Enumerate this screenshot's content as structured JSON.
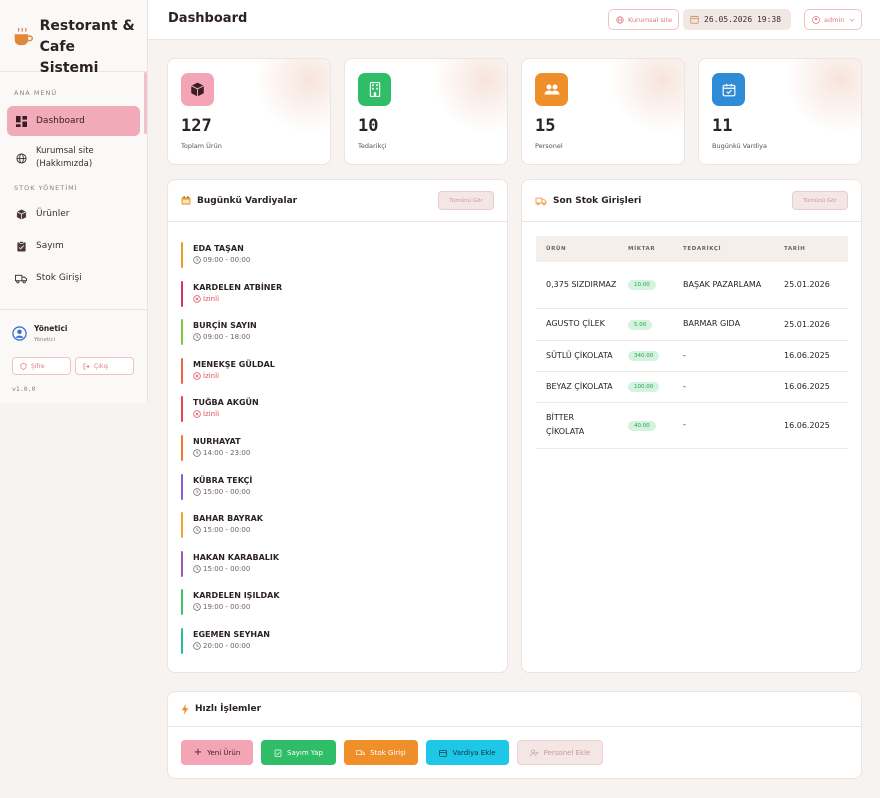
{
  "brand": {
    "title_line1": "Restorant &",
    "title_line2": "Cafe Sistemi"
  },
  "sidebar": {
    "section_main": "ANA MENÜ",
    "section_stock": "STOK YÖNETİMİ",
    "items": [
      {
        "label": "Dashboard",
        "icon": "dashboard-icon"
      },
      {
        "label": "Kurumsal site",
        "label2": "(Hakkımızda)",
        "icon": "globe-icon"
      },
      {
        "label": "Ürünler",
        "icon": "box-icon"
      },
      {
        "label": "Sayım",
        "icon": "clipboard-icon"
      },
      {
        "label": "Stok Girişi",
        "icon": "truck-icon"
      }
    ],
    "user": {
      "name": "Yönetici",
      "role": "Yönetici"
    },
    "password_btn": "Şifre",
    "logout_btn": "Çıkış",
    "version": "v1.0.0"
  },
  "topbar": {
    "title": "Dashboard",
    "kurumsal": "Kurumsal site",
    "datetime": "26.05.2026 19:38",
    "user": "admin"
  },
  "stats": [
    {
      "value": "127",
      "label": "Toplam Ürün",
      "color": "#f3a5b5",
      "icon": "box-icon"
    },
    {
      "value": "10",
      "label": "Tedarikçi",
      "color": "#2fbe67",
      "icon": "building-icon"
    },
    {
      "value": "15",
      "label": "Personel",
      "color": "#ef8f2a",
      "icon": "users-icon"
    },
    {
      "value": "11",
      "label": "Bugünkü Vardiya",
      "color": "#2f8bd6",
      "icon": "calendar-check-icon"
    }
  ],
  "shifts_panel": {
    "title": "Bugünkü Vardiyalar",
    "all_btn": "Tümünü Gör",
    "items": [
      {
        "name": "EDA TAŞAN",
        "time": "09:00 - 00:00",
        "off": false,
        "color": "#ef9a2a"
      },
      {
        "name": "KARDELEN ATBİNER",
        "time": "İzinli",
        "off": true,
        "color": "#d6336c"
      },
      {
        "name": "BURÇİN SAYIN",
        "time": "09:00 - 18:00",
        "off": false,
        "color": "#7ac943"
      },
      {
        "name": "MENEKŞE GÜLDAL",
        "time": "İzinli",
        "off": true,
        "color": "#f0643c"
      },
      {
        "name": "TUĞBA AKGÜN",
        "time": "İzinli",
        "off": true,
        "color": "#e8434f"
      },
      {
        "name": "NURHAYAT",
        "time": "14:00 - 23:00",
        "off": false,
        "color": "#f07a2a"
      },
      {
        "name": "KÜBRA TEKÇİ",
        "time": "15:00 - 00:00",
        "off": false,
        "color": "#8e5bd6"
      },
      {
        "name": "BAHAR BAYRAK",
        "time": "15:00 - 00:00",
        "off": false,
        "color": "#f0a52a"
      },
      {
        "name": "HAKAN KARABALIK",
        "time": "15:00 - 00:00",
        "off": false,
        "color": "#9b59b6"
      },
      {
        "name": "KARDELEN IŞILDAK",
        "time": "19:00 - 00:00",
        "off": false,
        "color": "#3cc26a"
      },
      {
        "name": "EGEMEN SEYHAN",
        "time": "20:00 - 00:00",
        "off": false,
        "color": "#20c09a"
      }
    ]
  },
  "stock_panel": {
    "title": "Son Stok Girişleri",
    "all_btn": "Tümünü Gör",
    "headers": [
      "ÜRÜN",
      "MİKTAR",
      "TEDARİKÇİ",
      "TARİH"
    ],
    "rows": [
      {
        "product": "0,375 SIZDIRMAZ",
        "qty": "10.00",
        "supplier": "BAŞAK PAZARLAMA",
        "date": "25.01.2026"
      },
      {
        "product": "AGUSTO ÇİLEK",
        "qty": "5.00",
        "supplier": "BARMAR GIDA",
        "date": "25.01.2026"
      },
      {
        "product": "SÜTLÜ ÇİKOLATA",
        "qty": "340.00",
        "supplier": "-",
        "date": "16.06.2025"
      },
      {
        "product": "BEYAZ ÇİKOLATA",
        "qty": "100.00",
        "supplier": "-",
        "date": "16.06.2025"
      },
      {
        "product": "BİTTER ÇİKOLATA",
        "qty": "40.00",
        "supplier": "-",
        "date": "16.06.2025"
      }
    ]
  },
  "quick": {
    "title": "Hızlı İşlemler",
    "buttons": [
      {
        "label": "Yeni Ürün",
        "bg": "#f3a5b5",
        "fg": "#4a2028"
      },
      {
        "label": "Sayım Yap",
        "bg": "#2fbe67",
        "fg": "#ffffff"
      },
      {
        "label": "Stok Girişi",
        "bg": "#ef8f2a",
        "fg": "#ffffff"
      },
      {
        "label": "Vardiya Ekle",
        "bg": "#1ec7e8",
        "fg": "#12323a"
      },
      {
        "label": "Personel Ekle",
        "bg": "#f4e6e4",
        "fg": "#c79aa0"
      }
    ]
  }
}
